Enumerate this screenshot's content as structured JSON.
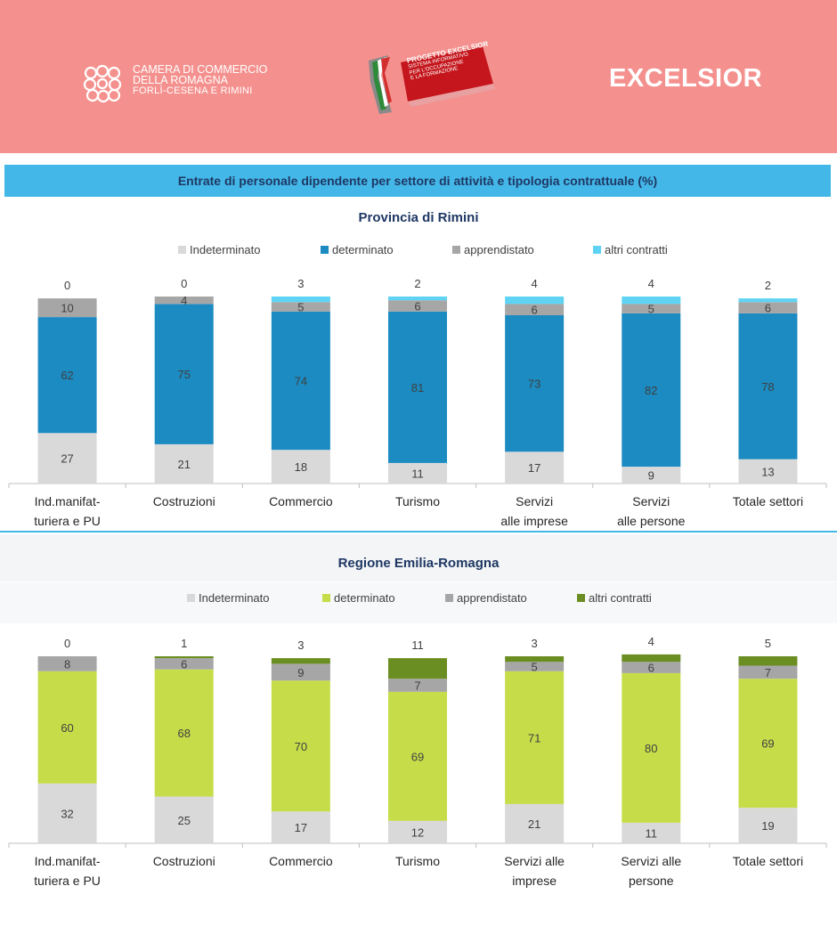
{
  "header": {
    "org_lines": [
      "CAMERA DI COMMERCIO",
      "DELLA ROMAGNA",
      "FORLÌ-CESENA E RIMINI"
    ],
    "project_title": "PROGETTO EXCELSIOR",
    "project_sub": [
      "SISTEMA INFORMATIVO",
      "PER L'OCCUPAZIONE",
      "E LA FORMAZIONE"
    ],
    "brand": "EXCELSIOR"
  },
  "page_title": "Entrate di personale dipendente per settore di attività e tipologia contrattuale (%)",
  "colors": {
    "header_bg": "#f4918e",
    "title_bar": "#43b7e8",
    "title_text": "#1f3864",
    "indeterminato": "#d9d9d9",
    "determinato_rimini": "#1b8bc2",
    "apprendistato": "#a6a6a6",
    "altri_rimini": "#5fd3f3",
    "determinato_er": "#c6dd49",
    "altri_er": "#6b8e23"
  },
  "chart_data": [
    {
      "type": "bar",
      "stacked": true,
      "title": "Provincia di Rimini",
      "categories": [
        [
          "Ind.manifat-",
          "turiera e PU"
        ],
        [
          "Costruzioni"
        ],
        [
          "Commercio"
        ],
        [
          "Turismo"
        ],
        [
          "Servizi",
          "alle imprese"
        ],
        [
          "Servizi",
          "alle persone"
        ],
        [
          "Totale settori"
        ]
      ],
      "series": [
        {
          "name": "Indeterminato",
          "color": "#d9d9d9",
          "values": [
            27,
            21,
            18,
            11,
            17,
            9,
            13
          ]
        },
        {
          "name": "determinato",
          "color": "#1b8bc2",
          "values": [
            62,
            75,
            74,
            81,
            73,
            82,
            78
          ]
        },
        {
          "name": "apprendistato",
          "color": "#a6a6a6",
          "values": [
            10,
            4,
            5,
            6,
            6,
            5,
            6
          ]
        },
        {
          "name": "altri contratti",
          "color": "#5fd3f3",
          "values": [
            0,
            0,
            3,
            2,
            4,
            4,
            2
          ]
        }
      ],
      "ylim": [
        0,
        100
      ],
      "legend": "top"
    },
    {
      "type": "bar",
      "stacked": true,
      "title": "Regione Emilia-Romagna",
      "categories": [
        [
          "Ind.manifat-",
          "turiera e PU"
        ],
        [
          "Costruzioni"
        ],
        [
          "Commercio"
        ],
        [
          "Turismo"
        ],
        [
          "Servizi alle",
          "imprese"
        ],
        [
          "Servizi alle",
          "persone"
        ],
        [
          "Totale settori"
        ]
      ],
      "series": [
        {
          "name": "Indeterminato",
          "color": "#d9d9d9",
          "values": [
            32,
            25,
            17,
            12,
            21,
            11,
            19
          ]
        },
        {
          "name": "determinato",
          "color": "#c6dd49",
          "values": [
            60,
            68,
            70,
            69,
            71,
            80,
            69
          ]
        },
        {
          "name": "apprendistato",
          "color": "#a6a6a6",
          "values": [
            8,
            6,
            9,
            7,
            5,
            6,
            7
          ]
        },
        {
          "name": "altri contratti",
          "color": "#6b8e23",
          "values": [
            0,
            1,
            3,
            11,
            3,
            4,
            5
          ]
        }
      ],
      "ylim": [
        0,
        100
      ],
      "legend": "top"
    }
  ]
}
